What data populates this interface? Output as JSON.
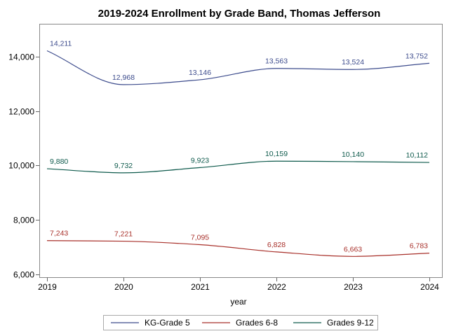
{
  "chart_data": {
    "type": "line",
    "title": "2019-2024 Enrollment by Grade Band, Thomas Jefferson",
    "xlabel": "year",
    "ylabel": "",
    "x": [
      2019,
      2020,
      2021,
      2022,
      2023,
      2024
    ],
    "xlim": [
      2019,
      2024
    ],
    "ylim": [
      5900,
      15200
    ],
    "yticks": [
      6000,
      8000,
      10000,
      12000,
      14000
    ],
    "ytick_labels": [
      "6,000",
      "8,000",
      "10,000",
      "12,000",
      "14,000"
    ],
    "xticks": [
      2019,
      2020,
      2021,
      2022,
      2023,
      2024
    ],
    "xtick_labels": [
      "2019",
      "2020",
      "2021",
      "2022",
      "2023",
      "2024"
    ],
    "grid": false,
    "legend_position": "bottom",
    "series": [
      {
        "name": "KG-Grade 5",
        "color": "#3c4b8c",
        "values": [
          14211,
          12968,
          13146,
          13563,
          13524,
          13752
        ],
        "labels": [
          "14,211",
          "12,968",
          "13,146",
          "13,563",
          "13,524",
          "13,752"
        ]
      },
      {
        "name": "Grades 6-8",
        "color": "#a8302a",
        "values": [
          7243,
          7221,
          7095,
          6828,
          6663,
          6783
        ],
        "labels": [
          "7,243",
          "7,221",
          "7,095",
          "6,828",
          "6,663",
          "6,783"
        ]
      },
      {
        "name": "Grades 9-12",
        "color": "#0e5a4c",
        "values": [
          9880,
          9732,
          9923,
          10159,
          10140,
          10112
        ],
        "labels": [
          "9,880",
          "9,732",
          "9,923",
          "10,159",
          "10,140",
          "10,112"
        ]
      }
    ]
  }
}
